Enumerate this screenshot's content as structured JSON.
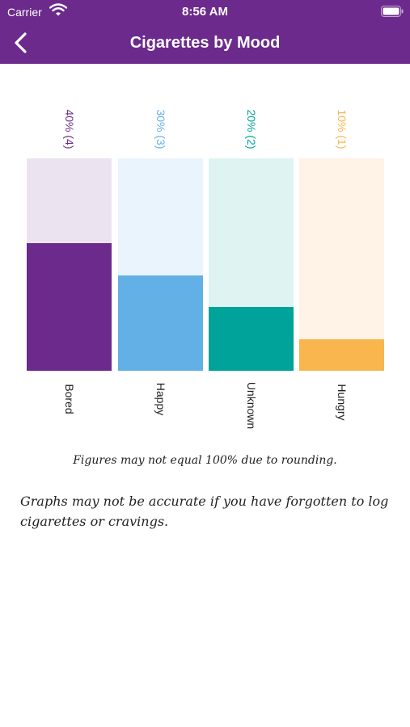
{
  "status_bar": {
    "carrier": "Carrier",
    "time": "8:56 AM"
  },
  "header": {
    "title": "Cigarettes by Mood",
    "back_icon": "chevron-left-icon"
  },
  "chart_data": {
    "type": "bar",
    "categories": [
      "Bored",
      "Happy",
      "Unknown",
      "Hungry"
    ],
    "values": [
      40,
      30,
      20,
      10
    ],
    "counts": [
      4,
      3,
      2,
      1
    ],
    "value_labels": [
      "40% (4)",
      "30% (3)",
      "20% (2)",
      "10% (1)"
    ],
    "ylim": [
      0,
      100
    ],
    "colors": [
      "#6b2a8c",
      "#62b0e6",
      "#00a39a",
      "#f9b54e"
    ],
    "track_colors": [
      "#ece3f0",
      "#eaf4fc",
      "#dff4f2",
      "#fef3e6"
    ],
    "grid": false
  },
  "notes": {
    "rounding": "Figures may not equal 100% due to rounding.",
    "accuracy": "Graphs may not be accurate if you have forgotten to log cigarettes or cravings."
  }
}
